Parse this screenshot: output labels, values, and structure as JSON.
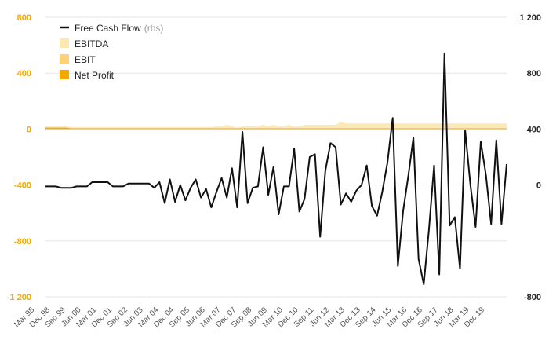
{
  "colors": {
    "ebitda": "#fde8b0",
    "ebit": "#fbd27a",
    "net_profit": "#f2a900",
    "fcf": "#111111",
    "left_axis": "#f2a900",
    "right_axis": "#222222",
    "grid": "#e6e6e6"
  },
  "chart_data": {
    "type": "area",
    "legend": [
      {
        "label": "Free Cash Flow",
        "unit": "(rhs)",
        "style": "line",
        "color": "#111111"
      },
      {
        "label": "EBITDA",
        "unit": "",
        "style": "area",
        "color": "#fde8b0"
      },
      {
        "label": "EBIT",
        "unit": "",
        "style": "area",
        "color": "#fbd27a"
      },
      {
        "label": "Net Profit",
        "unit": "",
        "style": "area",
        "color": "#f2a900"
      }
    ],
    "legend_position": "top-left",
    "grid": true,
    "y_left": {
      "min": -1200,
      "max": 800,
      "ticks": [
        "-1 200",
        "-800",
        "-400",
        "0",
        "400",
        "800"
      ],
      "tick_values": [
        -1200,
        -800,
        -400,
        0,
        400,
        800
      ]
    },
    "y_right": {
      "min": -800,
      "max": 1200,
      "ticks": [
        "-800",
        "0",
        "400",
        "800",
        "1 200"
      ],
      "tick_values": [
        -800,
        0,
        400,
        800,
        1200
      ]
    },
    "x_labels": [
      "Mar 98",
      "Dec 98",
      "Sep 99",
      "Jun 00",
      "Mar 01",
      "Dec 01",
      "Sep 02",
      "Jun 03",
      "Mar 04",
      "Dec 04",
      "Sep 05",
      "Jun 06",
      "Mar 07",
      "Dec 07",
      "Sep 08",
      "Jun 09",
      "Mar 10",
      "Dec 10",
      "Sep 11",
      "Jun 12",
      "Mar 13",
      "Dec 13",
      "Sep 14",
      "Jun 15",
      "Mar 16",
      "Dec 16",
      "Sep 17",
      "Jun 18",
      "Mar 19",
      "Dec 19"
    ],
    "series": [
      {
        "name": "Free Cash Flow",
        "axis": "right",
        "values": [
          -10,
          -10,
          -10,
          -20,
          -20,
          -20,
          -10,
          -10,
          -10,
          20,
          20,
          20,
          20,
          -10,
          -10,
          -10,
          10,
          10,
          10,
          10,
          10,
          -20,
          20,
          -130,
          40,
          -120,
          0,
          -110,
          -20,
          40,
          -90,
          -30,
          -160,
          -50,
          50,
          -90,
          120,
          -160,
          380,
          -130,
          -20,
          -10,
          270,
          -70,
          130,
          -210,
          -10,
          -10,
          260,
          -190,
          -100,
          200,
          220,
          -370,
          100,
          300,
          270,
          -140,
          -60,
          -120,
          -40,
          0,
          140,
          -150,
          -220,
          -50,
          160,
          480,
          -580,
          -190,
          60,
          340,
          -530,
          -710,
          -320,
          140,
          -640,
          940,
          -290,
          -230,
          -600,
          390,
          0,
          -300,
          310,
          70,
          -280,
          320,
          -280,
          150
        ]
      },
      {
        "name": "EBITDA",
        "axis": "left",
        "values": [
          20,
          20,
          20,
          20,
          20,
          15,
          15,
          15,
          15,
          15,
          15,
          15,
          15,
          15,
          15,
          15,
          15,
          15,
          15,
          15,
          15,
          15,
          15,
          15,
          15,
          15,
          15,
          15,
          15,
          15,
          15,
          15,
          15,
          20,
          20,
          30,
          20,
          10,
          20,
          20,
          20,
          20,
          30,
          20,
          30,
          20,
          20,
          30,
          20,
          20,
          30,
          30,
          30,
          30,
          30,
          30,
          30,
          50,
          40,
          40,
          40,
          40,
          40,
          40,
          40,
          40,
          40,
          40,
          40,
          40,
          40,
          40,
          40,
          40,
          40,
          40,
          40,
          40,
          40,
          40,
          40,
          40,
          40,
          40,
          40,
          40,
          40,
          40,
          40,
          40
        ]
      },
      {
        "name": "EBIT",
        "axis": "left",
        "values": [
          10,
          10,
          10,
          10,
          10,
          5,
          5,
          5,
          5,
          5,
          5,
          5,
          5,
          5,
          5,
          5,
          5,
          5,
          5,
          5,
          5,
          5,
          5,
          5,
          5,
          5,
          5,
          5,
          5,
          5,
          5,
          5,
          5,
          5,
          5,
          5,
          5,
          5,
          5,
          5,
          5,
          5,
          5,
          5,
          5,
          5,
          5,
          5,
          5,
          5,
          5,
          5,
          5,
          5,
          5,
          5,
          5,
          5,
          5,
          5,
          5,
          5,
          5,
          5,
          5,
          5,
          5,
          5,
          5,
          5,
          5,
          5,
          5,
          5,
          5,
          5,
          5,
          5,
          5,
          5,
          5,
          5,
          5,
          5,
          5,
          5,
          5,
          5,
          5,
          5
        ]
      },
      {
        "name": "Net Profit",
        "axis": "left",
        "values": [
          10,
          10,
          10,
          10,
          10,
          5,
          5,
          5,
          5,
          5,
          5,
          5,
          5,
          5,
          5,
          5,
          5,
          5,
          5,
          5,
          5,
          5,
          5,
          5,
          5,
          5,
          5,
          5,
          5,
          5,
          5,
          5,
          5,
          5,
          5,
          5,
          5,
          5,
          5,
          5,
          5,
          5,
          5,
          5,
          5,
          5,
          5,
          5,
          5,
          5,
          5,
          5,
          5,
          5,
          5,
          5,
          5,
          5,
          5,
          5,
          5,
          5,
          5,
          5,
          5,
          5,
          5,
          5,
          5,
          5,
          5,
          5,
          5,
          5,
          5,
          5,
          5,
          5,
          5,
          5,
          5,
          5,
          5,
          5,
          5,
          5,
          5,
          5,
          5,
          5
        ]
      }
    ]
  }
}
